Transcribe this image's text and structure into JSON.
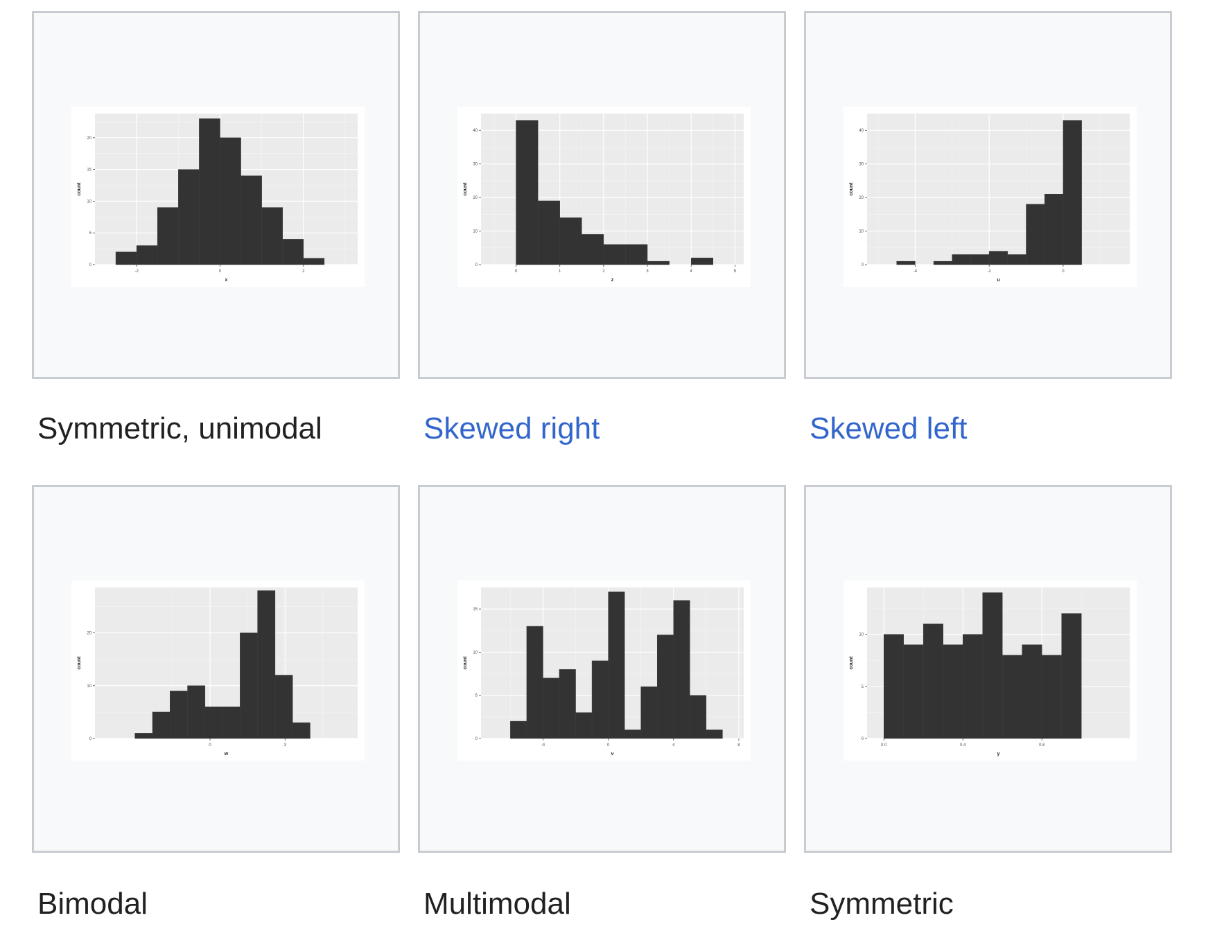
{
  "gallery": {
    "items": [
      {
        "caption": "Symmetric, unimodal",
        "link": false
      },
      {
        "caption": "Skewed right",
        "link": true
      },
      {
        "caption": "Skewed left",
        "link": true
      },
      {
        "caption": "Bimodal",
        "link": false
      },
      {
        "caption": "Multimodal",
        "link": false
      },
      {
        "caption": "Symmetric",
        "link": false
      }
    ]
  },
  "colors": {
    "bar": "#333333",
    "panel": "#ebebeb",
    "grid": "#ffffff",
    "link": "#3366cc",
    "text": "#202122"
  },
  "chart_data": [
    {
      "type": "bar",
      "xlabel": "x",
      "ylabel": "count",
      "xlim": [
        -3.0,
        3.3
      ],
      "ylim": [
        0,
        23.8
      ],
      "xticks": [
        -2,
        0,
        2
      ],
      "xtick_labels": [
        "-2",
        "0",
        "2"
      ],
      "yticks": [
        0,
        5,
        10,
        15,
        20
      ],
      "ytick_labels": [
        "0",
        "5",
        "10",
        "15",
        "20"
      ],
      "bin_start": -2.5,
      "bin_width": 0.5,
      "values": [
        2,
        3,
        9,
        15,
        23,
        20,
        14,
        9,
        4,
        1
      ]
    },
    {
      "type": "bar",
      "xlabel": "z",
      "ylabel": "count",
      "xlim": [
        -0.8,
        5.2
      ],
      "ylim": [
        0,
        45
      ],
      "xticks": [
        0,
        1,
        2,
        3,
        4,
        5
      ],
      "xtick_labels": [
        "0",
        "1",
        "2",
        "3",
        "4",
        "5"
      ],
      "yticks": [
        0,
        10,
        20,
        30,
        40
      ],
      "ytick_labels": [
        "0",
        "10",
        "20",
        "30",
        "40"
      ],
      "bin_start": 0,
      "bin_width": 0.5,
      "values": [
        43,
        19,
        14,
        9,
        6,
        6,
        1,
        0,
        2
      ]
    },
    {
      "type": "bar",
      "xlabel": "u",
      "ylabel": "count",
      "xlim": [
        -5.3,
        1.8
      ],
      "ylim": [
        0,
        45
      ],
      "xticks": [
        -4,
        -2,
        0
      ],
      "xtick_labels": [
        "-4",
        "-2",
        "0"
      ],
      "yticks": [
        0,
        10,
        20,
        30,
        40
      ],
      "ytick_labels": [
        "0",
        "10",
        "20",
        "30",
        "40"
      ],
      "bin_start": -4.5,
      "bin_width": 0.5,
      "values": [
        1,
        0,
        1,
        3,
        3,
        4,
        3,
        18,
        21,
        43
      ]
    },
    {
      "type": "bar",
      "xlabel": "w",
      "ylabel": "count",
      "xlim": [
        -4.6,
        5.9
      ],
      "ylim": [
        0,
        28.6
      ],
      "xticks": [
        0,
        3
      ],
      "xtick_labels": [
        "0",
        "3"
      ],
      "yticks": [
        0,
        10,
        20
      ],
      "ytick_labels": [
        "0",
        "10",
        "20"
      ],
      "bin_start": -3.0,
      "bin_width": 0.7,
      "values": [
        1,
        5,
        9,
        10,
        6,
        6,
        20,
        28,
        12,
        3
      ]
    },
    {
      "type": "bar",
      "xlabel": "v",
      "ylabel": "count",
      "xlim": [
        -7.8,
        8.3
      ],
      "ylim": [
        0,
        17.5
      ],
      "xticks": [
        -4,
        0,
        4,
        8
      ],
      "xtick_labels": [
        "-4",
        "0",
        "4",
        "8"
      ],
      "yticks": [
        0,
        5,
        10,
        15
      ],
      "ytick_labels": [
        "0",
        "5",
        "10",
        "15"
      ],
      "bin_start": -6.0,
      "bin_width": 1.0,
      "values": [
        2,
        13,
        7,
        8,
        3,
        9,
        17,
        1,
        6,
        12,
        16,
        5,
        1
      ]
    },
    {
      "type": "bar",
      "xlabel": "y",
      "ylabel": "count",
      "xlim": [
        -0.085,
        1.245
      ],
      "ylim": [
        0,
        14.5
      ],
      "xticks": [
        0.0,
        0.4,
        0.8
      ],
      "xtick_labels": [
        "0.0",
        "0.4",
        "0.8"
      ],
      "yticks": [
        0,
        5,
        10
      ],
      "ytick_labels": [
        "0",
        "5",
        "10"
      ],
      "bin_start": 0.0,
      "bin_width": 0.1,
      "values": [
        10,
        9,
        11,
        9,
        10,
        14,
        8,
        9,
        8,
        12
      ]
    }
  ]
}
